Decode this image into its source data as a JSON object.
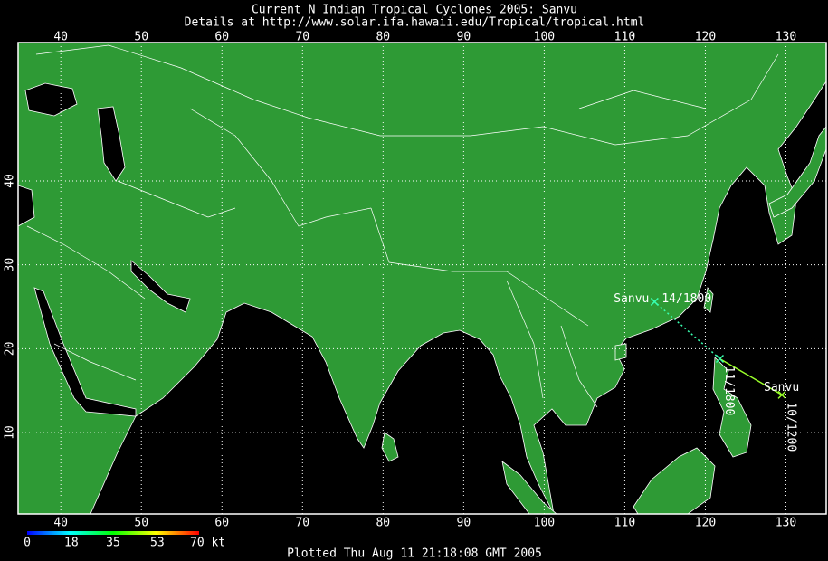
{
  "header": {
    "title": "Current N Indian Tropical Cyclones 2005: Sanvu",
    "subtitle": "Details at http://www.solar.ifa.hawaii.edu/Tropical/tropical.html"
  },
  "map": {
    "lon_range": [
      34.7,
      135
    ],
    "lat_range": [
      0.3,
      56.5
    ],
    "lon_ticks": [
      40,
      50,
      60,
      70,
      80,
      90,
      100,
      110,
      120,
      130
    ],
    "lat_ticks": [
      10,
      20,
      30,
      40
    ],
    "grid": true
  },
  "track": {
    "name": "Sanvu",
    "points": [
      {
        "lon": 129.5,
        "lat": 14.5,
        "label": "10/1200"
      },
      {
        "lon": 121.8,
        "lat": 18.8,
        "label": "11/1800"
      },
      {
        "lon": 113.7,
        "lat": 25.6,
        "label": "14/1800"
      }
    ],
    "segment_colors": [
      "#9aff2a",
      "#38ffb0"
    ]
  },
  "legend": {
    "range": [
      0,
      70
    ],
    "ticks": [
      0,
      18,
      35,
      53,
      {
        "value": 70,
        "label": "70 kt"
      }
    ],
    "colors": [
      "#0000ff",
      "#00ffff",
      "#00ff00",
      "#ffff00",
      "#ff0000"
    ]
  },
  "footer": "Plotted Thu Aug 11 21:18:08 GMT 2005"
}
